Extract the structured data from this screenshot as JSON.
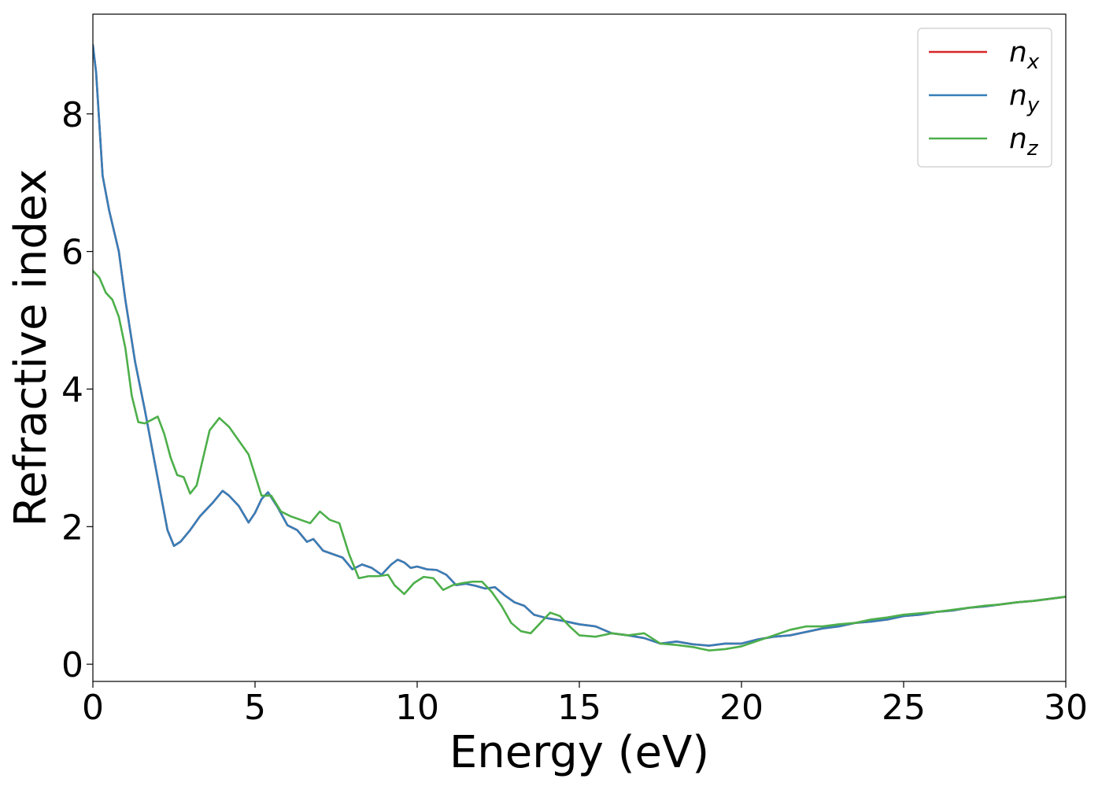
{
  "chart_data": {
    "type": "line",
    "title": "",
    "xlabel": "Energy (eV)",
    "ylabel": "Refractive index",
    "xlim": [
      0,
      30
    ],
    "ylim": [
      -0.25,
      9.45
    ],
    "x_ticks": [
      0,
      5,
      10,
      15,
      20,
      25,
      30
    ],
    "x_tick_labels": [
      "0",
      "5",
      "10",
      "15",
      "20",
      "25",
      "30"
    ],
    "y_ticks": [
      0,
      2,
      4,
      6,
      8
    ],
    "y_tick_labels": [
      "0",
      "2",
      "4",
      "6",
      "8"
    ],
    "grid": false,
    "legend_position": "top-right",
    "series": [
      {
        "name": "n_x",
        "legend_base": "n",
        "legend_sub": "x",
        "color": "#d62728",
        "x": [
          0,
          0.1,
          0.3,
          0.5,
          0.8,
          1.0,
          1.3,
          1.6,
          2.0,
          2.3,
          2.5,
          2.7,
          3.0,
          3.3,
          3.7,
          4.0,
          4.2,
          4.5,
          4.8,
          5.0,
          5.2,
          5.4,
          5.7,
          6.0,
          6.3,
          6.6,
          6.8,
          7.1,
          7.4,
          7.7,
          8.0,
          8.3,
          8.6,
          8.9,
          9.2,
          9.4,
          9.6,
          9.8,
          10.0,
          10.3,
          10.6,
          10.9,
          11.2,
          11.5,
          11.8,
          12.1,
          12.4,
          12.7,
          13.0,
          13.3,
          13.6,
          14.0,
          14.5,
          15.0,
          15.5,
          16.0,
          16.5,
          17.0,
          17.5,
          18.0,
          18.5,
          19.0,
          19.5,
          20.0,
          20.5,
          21.0,
          21.5,
          22.0,
          22.5,
          23.0,
          23.5,
          24.0,
          24.5,
          25.0,
          25.5,
          26.0,
          26.5,
          27.0,
          27.5,
          28.0,
          28.5,
          29.0,
          29.5,
          30.0
        ],
        "values": [
          9.0,
          8.6,
          7.1,
          6.6,
          6.0,
          5.3,
          4.4,
          3.7,
          2.7,
          1.95,
          1.72,
          1.78,
          1.95,
          2.15,
          2.35,
          2.52,
          2.45,
          2.3,
          2.06,
          2.2,
          2.4,
          2.5,
          2.28,
          2.02,
          1.95,
          1.78,
          1.82,
          1.65,
          1.6,
          1.55,
          1.38,
          1.45,
          1.4,
          1.3,
          1.45,
          1.52,
          1.48,
          1.4,
          1.42,
          1.38,
          1.37,
          1.3,
          1.15,
          1.17,
          1.14,
          1.1,
          1.12,
          1.0,
          0.9,
          0.85,
          0.72,
          0.67,
          0.63,
          0.58,
          0.55,
          0.45,
          0.42,
          0.38,
          0.3,
          0.33,
          0.29,
          0.27,
          0.3,
          0.3,
          0.36,
          0.4,
          0.42,
          0.47,
          0.52,
          0.55,
          0.6,
          0.62,
          0.65,
          0.7,
          0.72,
          0.76,
          0.78,
          0.82,
          0.84,
          0.87,
          0.9,
          0.92,
          0.95,
          0.98
        ]
      },
      {
        "name": "n_y",
        "legend_base": "n",
        "legend_sub": "y",
        "color": "#377eb8",
        "x": [
          0,
          0.1,
          0.3,
          0.5,
          0.8,
          1.0,
          1.3,
          1.6,
          2.0,
          2.3,
          2.5,
          2.7,
          3.0,
          3.3,
          3.7,
          4.0,
          4.2,
          4.5,
          4.8,
          5.0,
          5.2,
          5.4,
          5.7,
          6.0,
          6.3,
          6.6,
          6.8,
          7.1,
          7.4,
          7.7,
          8.0,
          8.3,
          8.6,
          8.9,
          9.2,
          9.4,
          9.6,
          9.8,
          10.0,
          10.3,
          10.6,
          10.9,
          11.2,
          11.5,
          11.8,
          12.1,
          12.4,
          12.7,
          13.0,
          13.3,
          13.6,
          14.0,
          14.5,
          15.0,
          15.5,
          16.0,
          16.5,
          17.0,
          17.5,
          18.0,
          18.5,
          19.0,
          19.5,
          20.0,
          20.5,
          21.0,
          21.5,
          22.0,
          22.5,
          23.0,
          23.5,
          24.0,
          24.5,
          25.0,
          25.5,
          26.0,
          26.5,
          27.0,
          27.5,
          28.0,
          28.5,
          29.0,
          29.5,
          30.0
        ],
        "values": [
          9.0,
          8.6,
          7.1,
          6.6,
          6.0,
          5.3,
          4.4,
          3.7,
          2.7,
          1.95,
          1.72,
          1.78,
          1.95,
          2.15,
          2.35,
          2.52,
          2.45,
          2.3,
          2.06,
          2.2,
          2.4,
          2.5,
          2.28,
          2.02,
          1.95,
          1.78,
          1.82,
          1.65,
          1.6,
          1.55,
          1.38,
          1.45,
          1.4,
          1.3,
          1.45,
          1.52,
          1.48,
          1.4,
          1.42,
          1.38,
          1.37,
          1.3,
          1.15,
          1.17,
          1.14,
          1.1,
          1.12,
          1.0,
          0.9,
          0.85,
          0.72,
          0.67,
          0.63,
          0.58,
          0.55,
          0.45,
          0.42,
          0.38,
          0.3,
          0.33,
          0.29,
          0.27,
          0.3,
          0.3,
          0.36,
          0.4,
          0.42,
          0.47,
          0.52,
          0.55,
          0.6,
          0.62,
          0.65,
          0.7,
          0.72,
          0.76,
          0.78,
          0.82,
          0.84,
          0.87,
          0.9,
          0.92,
          0.95,
          0.98
        ]
      },
      {
        "name": "n_z",
        "legend_base": "n",
        "legend_sub": "z",
        "color": "#4daf4a",
        "x": [
          0,
          0.2,
          0.4,
          0.6,
          0.8,
          1.0,
          1.2,
          1.4,
          1.6,
          1.8,
          2.0,
          2.2,
          2.4,
          2.6,
          2.8,
          3.0,
          3.2,
          3.4,
          3.6,
          3.9,
          4.2,
          4.5,
          4.8,
          5.0,
          5.2,
          5.5,
          5.8,
          6.1,
          6.4,
          6.7,
          7.0,
          7.3,
          7.6,
          7.9,
          8.2,
          8.5,
          8.8,
          9.1,
          9.3,
          9.6,
          9.9,
          10.2,
          10.5,
          10.8,
          11.1,
          11.4,
          11.7,
          12.0,
          12.3,
          12.6,
          12.9,
          13.2,
          13.5,
          13.8,
          14.1,
          14.4,
          14.7,
          15.0,
          15.5,
          16.0,
          16.5,
          17.0,
          17.5,
          18.0,
          18.5,
          19.0,
          19.5,
          20.0,
          20.5,
          21.0,
          21.5,
          22.0,
          22.5,
          23.0,
          23.5,
          24.0,
          24.5,
          25.0,
          25.5,
          26.0,
          26.5,
          27.0,
          27.5,
          28.0,
          28.5,
          29.0,
          29.5,
          30.0
        ],
        "values": [
          5.72,
          5.62,
          5.4,
          5.3,
          5.05,
          4.6,
          3.9,
          3.52,
          3.5,
          3.55,
          3.6,
          3.35,
          3.0,
          2.75,
          2.72,
          2.48,
          2.6,
          3.0,
          3.4,
          3.58,
          3.45,
          3.25,
          3.05,
          2.75,
          2.45,
          2.45,
          2.22,
          2.15,
          2.1,
          2.05,
          2.22,
          2.1,
          2.05,
          1.6,
          1.25,
          1.28,
          1.28,
          1.3,
          1.15,
          1.02,
          1.18,
          1.27,
          1.25,
          1.08,
          1.15,
          1.18,
          1.2,
          1.2,
          1.05,
          0.85,
          0.6,
          0.48,
          0.45,
          0.6,
          0.75,
          0.7,
          0.55,
          0.42,
          0.4,
          0.45,
          0.42,
          0.45,
          0.3,
          0.28,
          0.25,
          0.2,
          0.22,
          0.26,
          0.34,
          0.42,
          0.5,
          0.55,
          0.55,
          0.58,
          0.6,
          0.65,
          0.68,
          0.72,
          0.74,
          0.76,
          0.79,
          0.82,
          0.85,
          0.87,
          0.9,
          0.92,
          0.95,
          0.98
        ]
      }
    ]
  }
}
